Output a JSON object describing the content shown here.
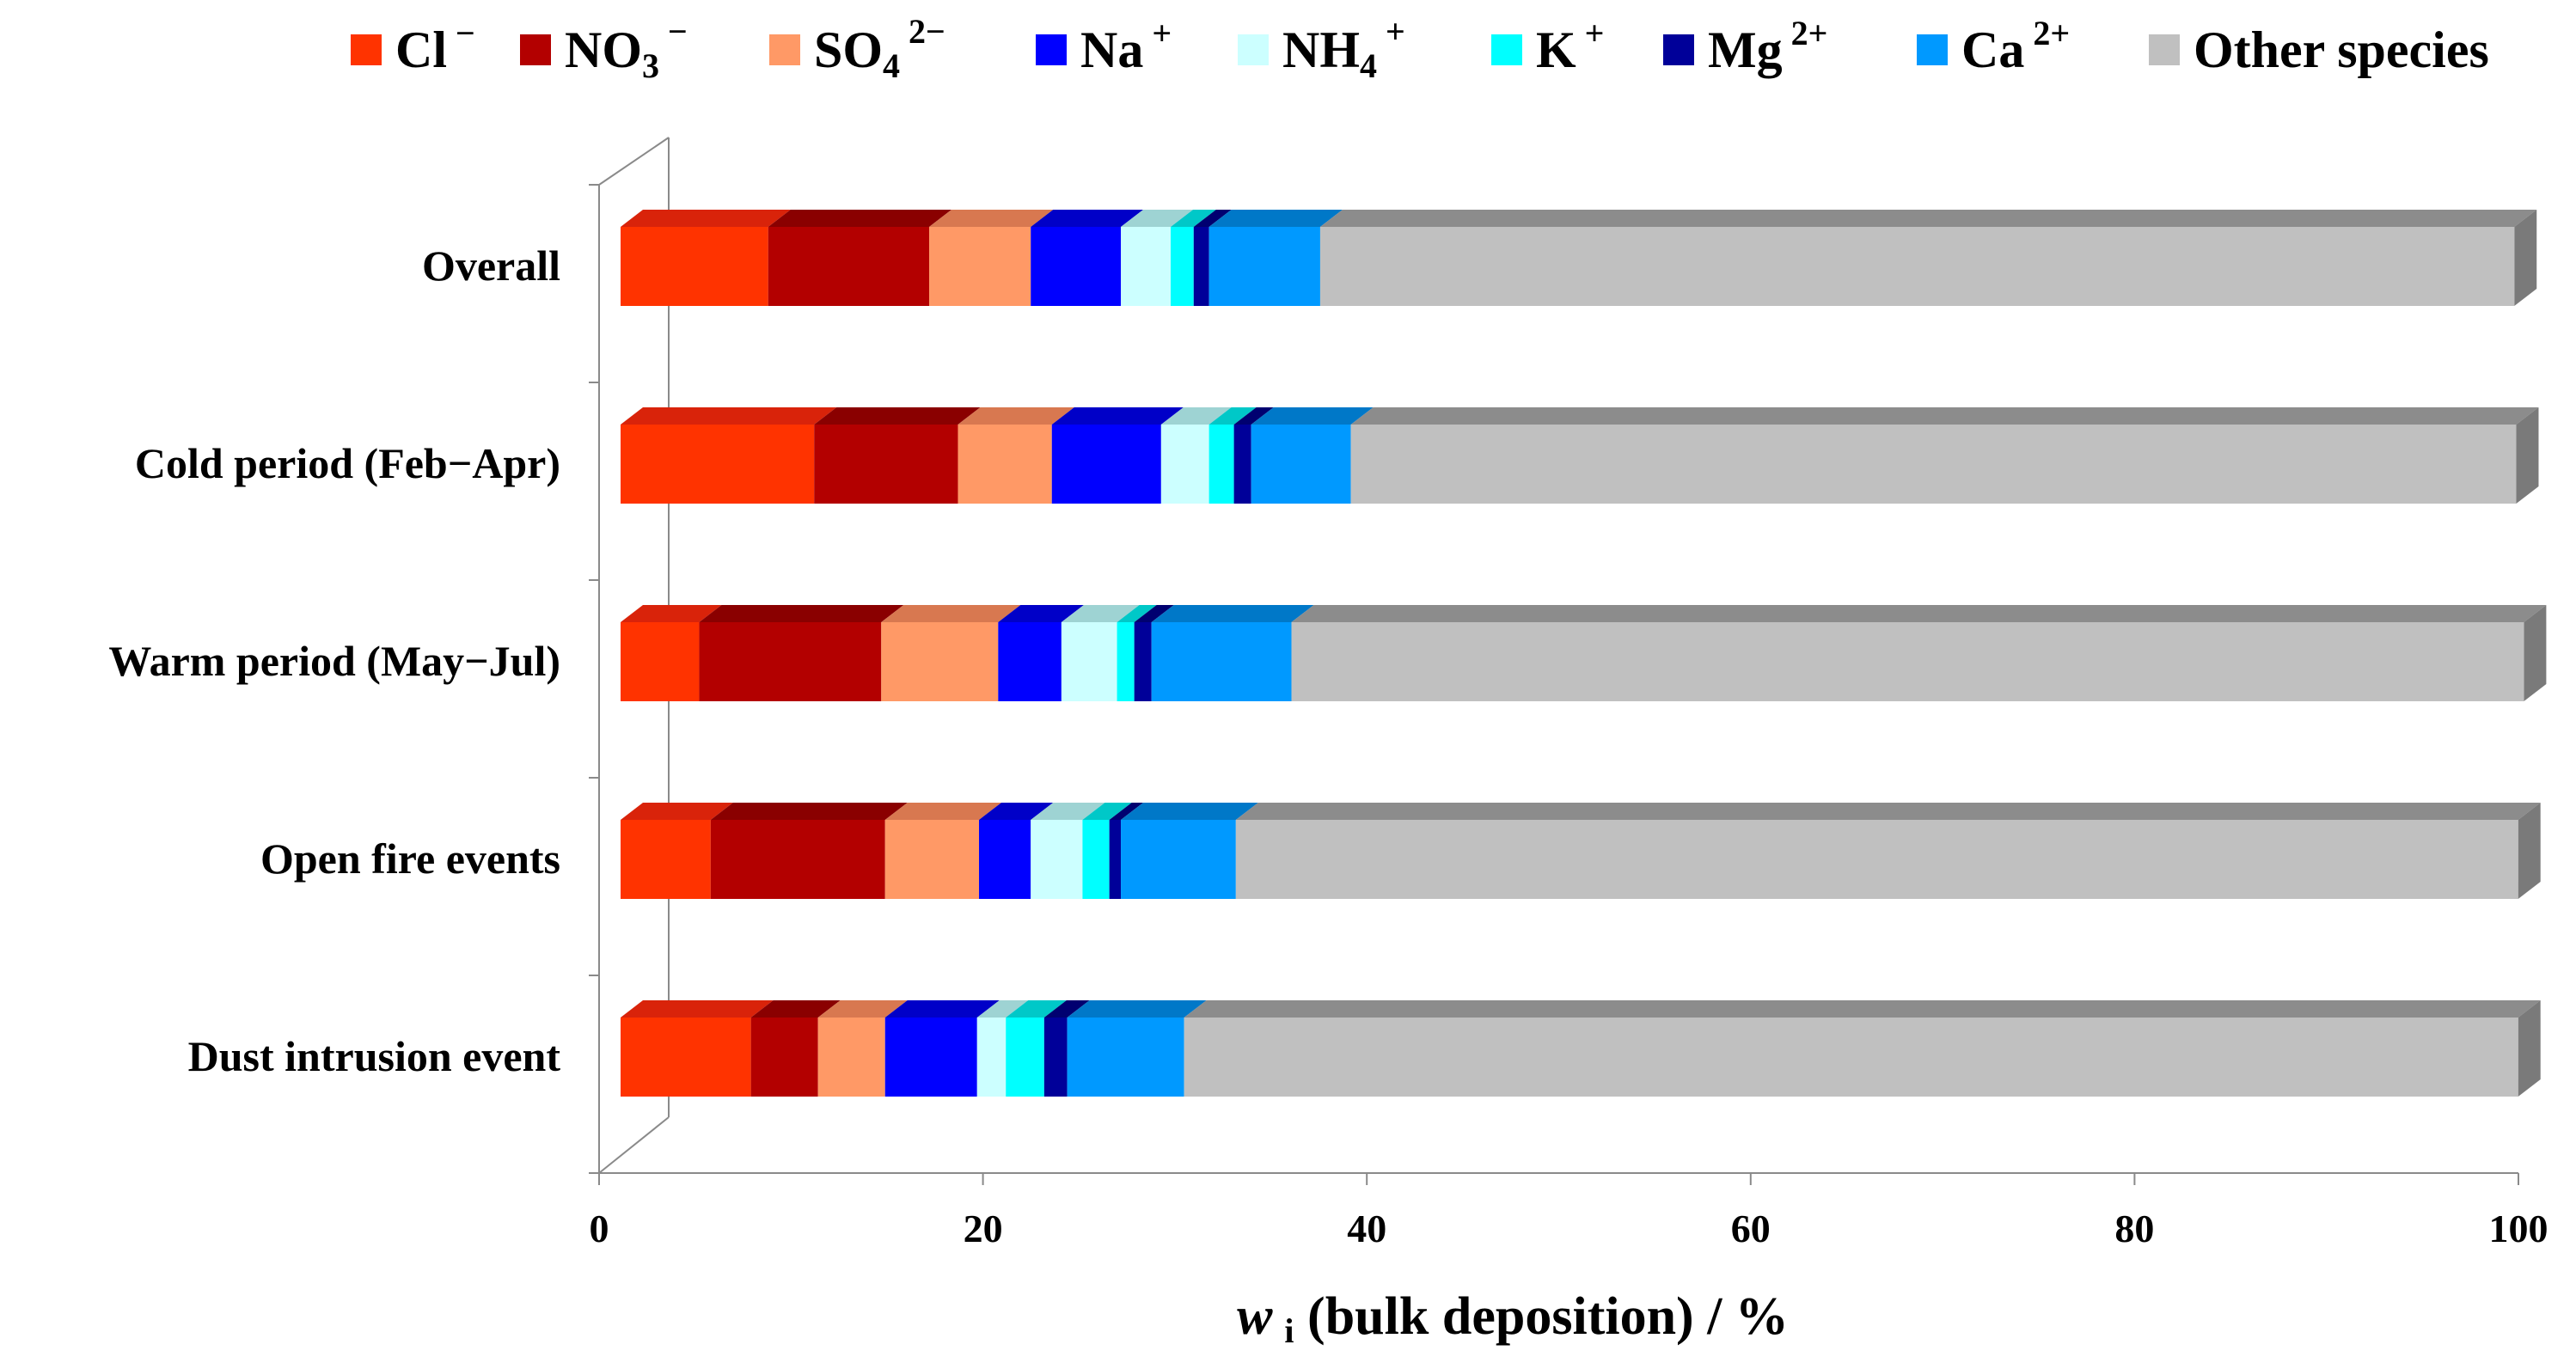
{
  "chart_data": {
    "type": "bar",
    "orientation": "horizontal",
    "stacked": true,
    "three_d": true,
    "categories": [
      "Overall",
      "Cold period (Feb−Apr)",
      "Warm period (May−Jul)",
      "Open fire events",
      "Dust intrusion event"
    ],
    "series": [
      {
        "name": "Cl⁻",
        "legend_base": "Cl",
        "legend_sub": "",
        "legend_sup": "−",
        "color": "#ff3300",
        "top_color": "#d9230a",
        "values": [
          7.7,
          10.1,
          4.1,
          4.7,
          6.8
        ]
      },
      {
        "name": "NO₃⁻",
        "legend_base": "NO",
        "legend_sub": "3",
        "legend_sup": "−",
        "color": "#b30000",
        "top_color": "#8a0000",
        "values": [
          8.4,
          7.5,
          9.5,
          9.1,
          3.5
        ]
      },
      {
        "name": "SO₄²⁻",
        "legend_base": "SO",
        "legend_sub": "4",
        "legend_sup": "2−",
        "color": "#ff9966",
        "top_color": "#d87850",
        "values": [
          5.3,
          4.9,
          6.1,
          4.9,
          3.5
        ]
      },
      {
        "name": "Na⁺",
        "legend_base": "Na",
        "legend_sub": "",
        "legend_sup": "+",
        "color": "#0000ff",
        "top_color": "#0000c8",
        "values": [
          4.7,
          5.7,
          3.3,
          2.7,
          4.8
        ]
      },
      {
        "name": "NH₄⁺",
        "legend_base": "NH",
        "legend_sub": "4",
        "legend_sup": "+",
        "color": "#ccffff",
        "top_color": "#9ed3d3",
        "values": [
          2.6,
          2.5,
          2.9,
          2.7,
          1.5
        ]
      },
      {
        "name": "K⁺",
        "legend_base": "K",
        "legend_sub": "",
        "legend_sup": "+",
        "color": "#00ffff",
        "top_color": "#00c8c8",
        "values": [
          1.2,
          1.3,
          0.9,
          1.4,
          2.0
        ]
      },
      {
        "name": "Mg²⁺",
        "legend_base": "Mg",
        "legend_sub": "",
        "legend_sup": "2+",
        "color": "#000099",
        "top_color": "#000070",
        "values": [
          0.8,
          0.9,
          0.9,
          0.6,
          1.2
        ]
      },
      {
        "name": "Ca²⁺",
        "legend_base": "Ca",
        "legend_sub": "",
        "legend_sup": "2+",
        "color": "#0099ff",
        "top_color": "#0078c8",
        "values": [
          5.8,
          5.2,
          7.3,
          6.0,
          6.1
        ]
      },
      {
        "name": "Other species",
        "legend_base": "Other species",
        "legend_sub": "",
        "legend_sup": "",
        "color": "#c0c0c0",
        "top_color": "#8c8c8c",
        "values": [
          62.3,
          60.8,
          64.3,
          66.9,
          69.6
        ]
      }
    ],
    "xlabel_prefix": "w",
    "xlabel_sub": "i",
    "xlabel_rest": " (bulk deposition) / %",
    "xlim": [
      0,
      100
    ],
    "xticks": [
      0,
      20,
      40,
      60,
      80,
      100
    ],
    "legend_position": "top",
    "grid": false
  }
}
